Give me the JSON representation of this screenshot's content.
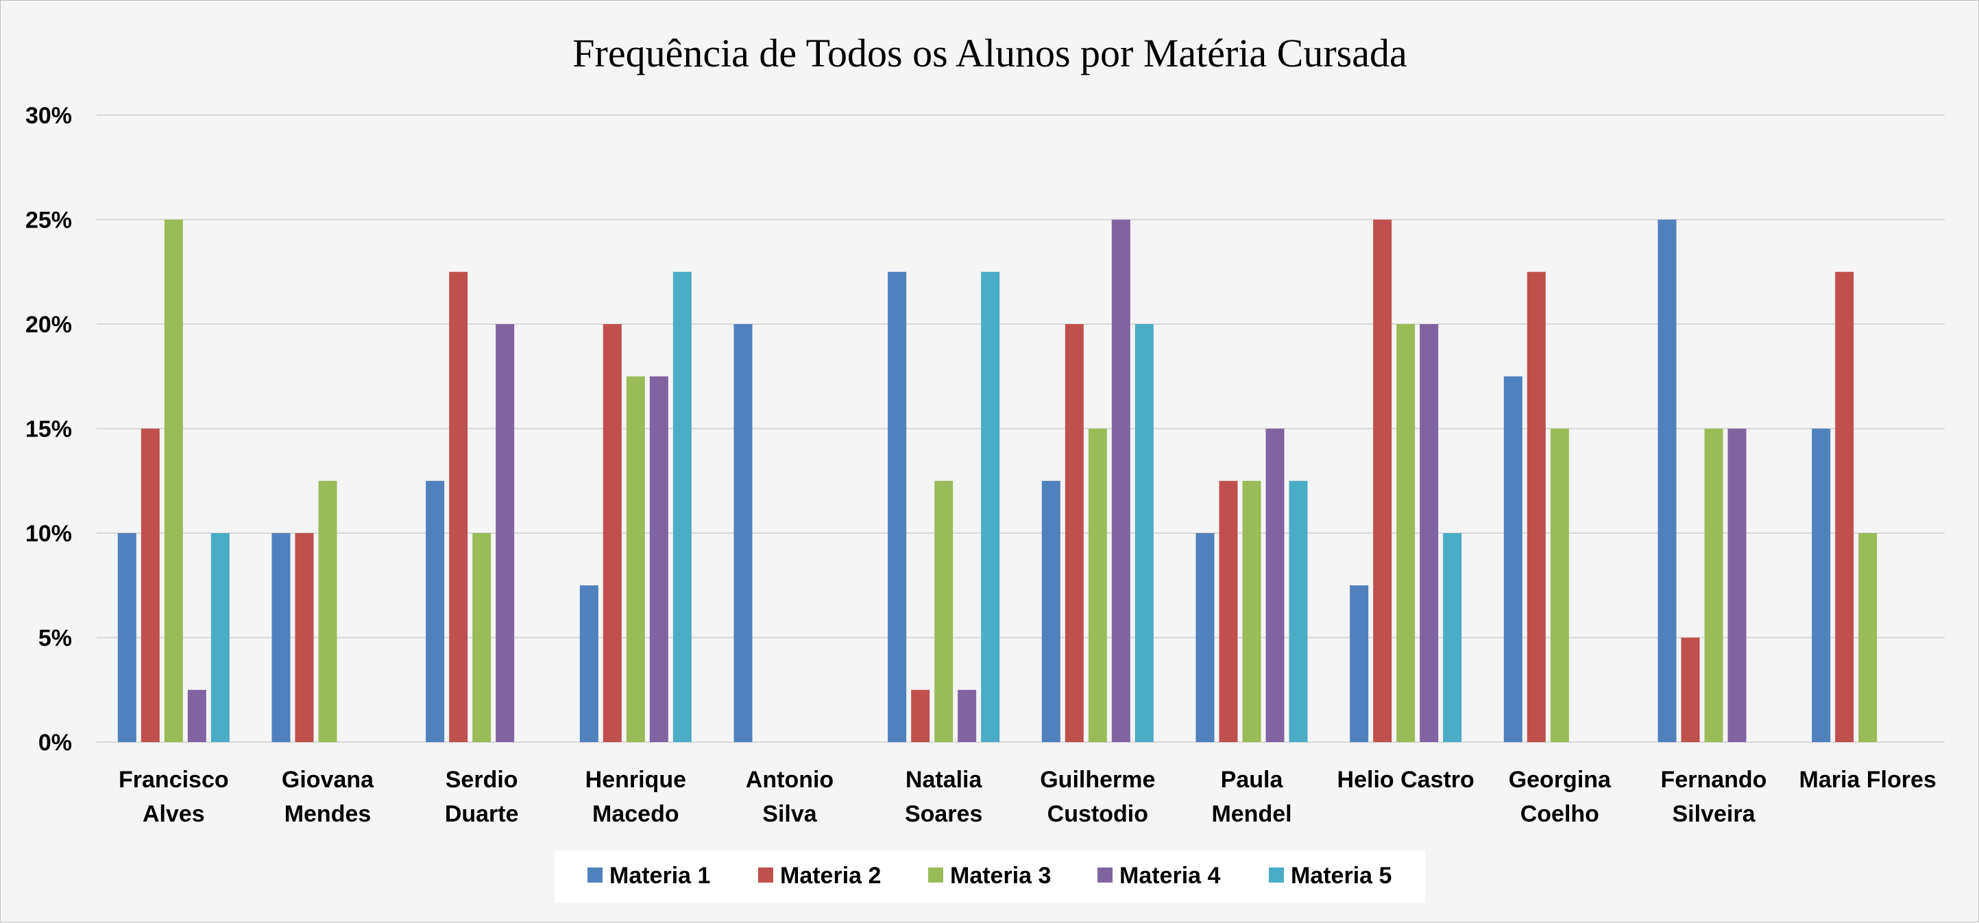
{
  "chart_data": {
    "type": "bar",
    "title": "Frequência de Todos os Alunos por Matéria Cursada",
    "xlabel": "",
    "ylabel": "",
    "ylim": [
      0,
      0.3
    ],
    "yticks": [
      0,
      0.05,
      0.1,
      0.15,
      0.2,
      0.25,
      0.3
    ],
    "ytick_labels": [
      "0%",
      "5%",
      "10%",
      "15%",
      "20%",
      "25%",
      "30%"
    ],
    "grid": true,
    "legend_position": "bottom",
    "categories": [
      [
        "Francisco",
        "Alves"
      ],
      [
        "Giovana",
        "Mendes"
      ],
      [
        "Serdio",
        "Duarte"
      ],
      [
        "Henrique",
        "Macedo"
      ],
      [
        "Antonio",
        "Silva"
      ],
      [
        "Natalia",
        "Soares"
      ],
      [
        "Guilherme",
        "Custodio"
      ],
      [
        "Paula",
        "Mendel"
      ],
      [
        "Helio Castro"
      ],
      [
        "Georgina",
        "Coelho"
      ],
      [
        "Fernando",
        "Silveira"
      ],
      [
        "Maria Flores"
      ]
    ],
    "series": [
      {
        "name": "Materia 1",
        "color": "#4f81bd",
        "values": [
          0.1,
          0.1,
          0.125,
          0.075,
          0.2,
          0.225,
          0.125,
          0.1,
          0.075,
          0.175,
          0.25,
          0.15
        ]
      },
      {
        "name": "Materia 2",
        "color": "#c0504d",
        "values": [
          0.15,
          0.1,
          0.225,
          0.2,
          null,
          0.025,
          0.2,
          0.125,
          0.25,
          0.225,
          0.05,
          0.225
        ]
      },
      {
        "name": "Materia 3",
        "color": "#9bbb59",
        "values": [
          0.25,
          0.125,
          0.1,
          0.175,
          null,
          0.125,
          0.15,
          0.125,
          0.2,
          0.15,
          0.15,
          0.1
        ]
      },
      {
        "name": "Materia 4",
        "color": "#8064a2",
        "values": [
          0.025,
          null,
          0.2,
          0.175,
          null,
          0.025,
          0.25,
          0.15,
          0.2,
          null,
          0.15,
          null
        ]
      },
      {
        "name": "Materia 5",
        "color": "#4bacc6",
        "values": [
          0.1,
          null,
          null,
          0.225,
          null,
          0.225,
          0.2,
          0.125,
          0.1,
          null,
          null,
          null
        ]
      }
    ]
  }
}
